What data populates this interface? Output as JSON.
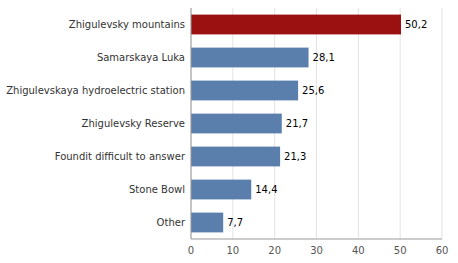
{
  "chart_data": {
    "type": "bar",
    "orientation": "horizontal",
    "categories": [
      "Other",
      "Stone Bowl",
      "Foundit difficult to answer",
      "Zhigulevsky Reserve",
      "Zhigulevskaya hydroelectric station",
      "Samarskaya Luka",
      "Zhigulevsky mountains"
    ],
    "values": [
      7.7,
      14.4,
      21.3,
      21.7,
      25.6,
      28.1,
      50.2
    ],
    "value_labels": [
      "7,7",
      "14,4",
      "21,3",
      "21,7",
      "25,6",
      "28,1",
      "50,2"
    ],
    "colors": [
      "#5b7fad",
      "#5b7fad",
      "#5b7fad",
      "#5b7fad",
      "#5b7fad",
      "#5b7fad",
      "#9b1010"
    ],
    "data_labels": true,
    "xlim": [
      0,
      60
    ],
    "xticks": [
      0,
      10,
      20,
      30,
      40,
      50,
      60
    ],
    "grid": true
  }
}
